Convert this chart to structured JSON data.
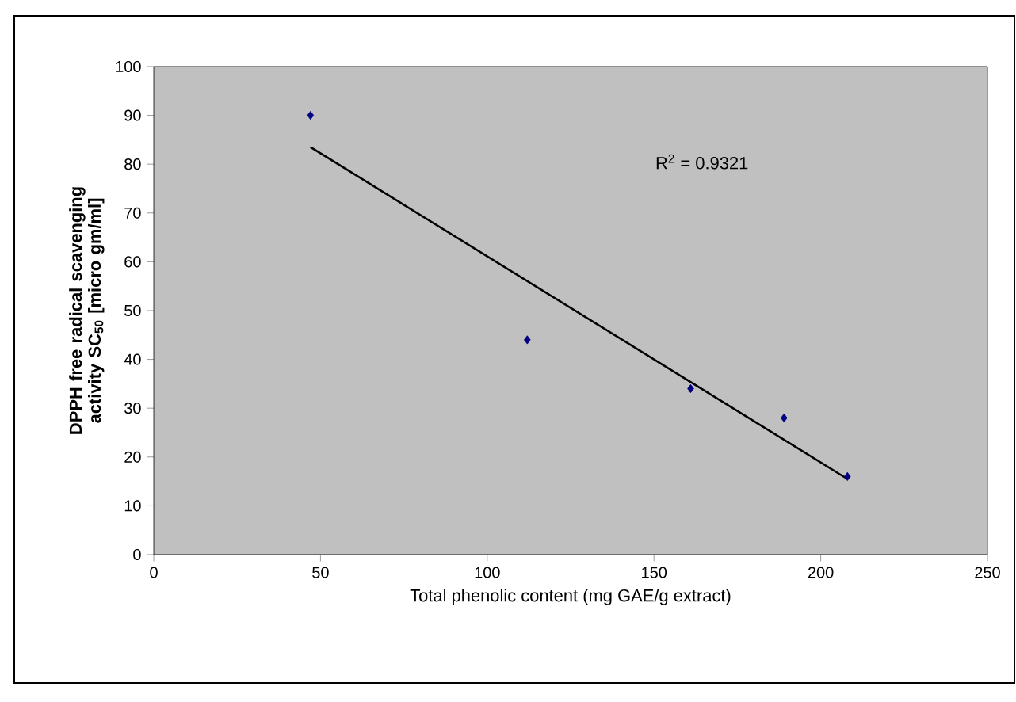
{
  "chart_data": {
    "type": "scatter",
    "xlabel": "Total phenolic content (mg GAE/g extract)",
    "ylabel": "DPPH free radical scavenging activity SC$_{50}$ [micro gm/ml]",
    "series": [
      {
        "color": "#000080",
        "marker": "diamond",
        "x": [
          47,
          112,
          161,
          189,
          208
        ],
        "values": [
          90,
          44,
          34,
          28,
          16
        ]
      },
      {
        "type": "line",
        "color": "#000000",
        "marker": "none",
        "line_style": "solid",
        "x": [
          47,
          208
        ],
        "values": [
          83.5,
          15.5
        ]
      }
    ],
    "annotations": [
      "R$^{2}$ = 0.9321"
    ],
    "xlim": [
      0,
      250
    ],
    "xticks": [
      0,
      50,
      100,
      150,
      200,
      250
    ],
    "ylim": [
      0,
      100
    ],
    "yticks": [
      0,
      10,
      20,
      30,
      40,
      50,
      60,
      70,
      80,
      90,
      100
    ],
    "grid": false
  }
}
